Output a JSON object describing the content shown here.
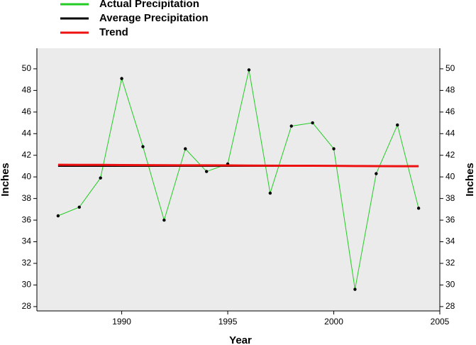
{
  "chart_data": {
    "type": "line",
    "x": [
      1987,
      1988,
      1989,
      1990,
      1991,
      1992,
      1993,
      1994,
      1995,
      1996,
      1997,
      1998,
      1999,
      2000,
      2001,
      2002,
      2003,
      2004
    ],
    "series": [
      {
        "name": "Actual Precipitation",
        "color": "#22cc22",
        "markers": true,
        "values": [
          36.4,
          37.2,
          39.9,
          49.1,
          42.8,
          36.0,
          42.6,
          40.5,
          41.2,
          49.9,
          38.5,
          44.7,
          45.0,
          42.6,
          29.6,
          40.3,
          44.8,
          37.1
        ]
      },
      {
        "name": "Average Precipitation",
        "color": "#000000",
        "values": [
          41.0,
          41.0,
          41.0,
          41.0,
          41.0,
          41.0,
          41.0,
          41.0,
          41.0,
          41.0,
          41.0,
          41.0,
          41.0,
          41.0,
          41.0,
          41.0,
          41.0,
          41.0
        ]
      },
      {
        "name": "Trend",
        "color": "#ee1111",
        "values": [
          41.12,
          41.11,
          41.11,
          41.1,
          41.09,
          41.08,
          41.07,
          41.07,
          41.06,
          41.05,
          41.04,
          41.03,
          41.03,
          41.02,
          41.01,
          41.0,
          40.99,
          40.99
        ]
      }
    ],
    "xlabel": "Year",
    "ylabel": "Inches",
    "y2label": "Inches",
    "xlim": [
      1986,
      2005
    ],
    "xticks": [
      1990,
      1995,
      2000,
      2005
    ],
    "ylim": [
      27.6,
      51.9
    ],
    "yticks": [
      28,
      30,
      32,
      34,
      36,
      38,
      40,
      42,
      44,
      46,
      48,
      50
    ],
    "y2lim": [
      27.6,
      51.9
    ],
    "y2ticks": [
      28,
      30,
      32,
      34,
      36,
      38,
      40,
      42,
      44,
      46,
      48,
      50
    ]
  }
}
